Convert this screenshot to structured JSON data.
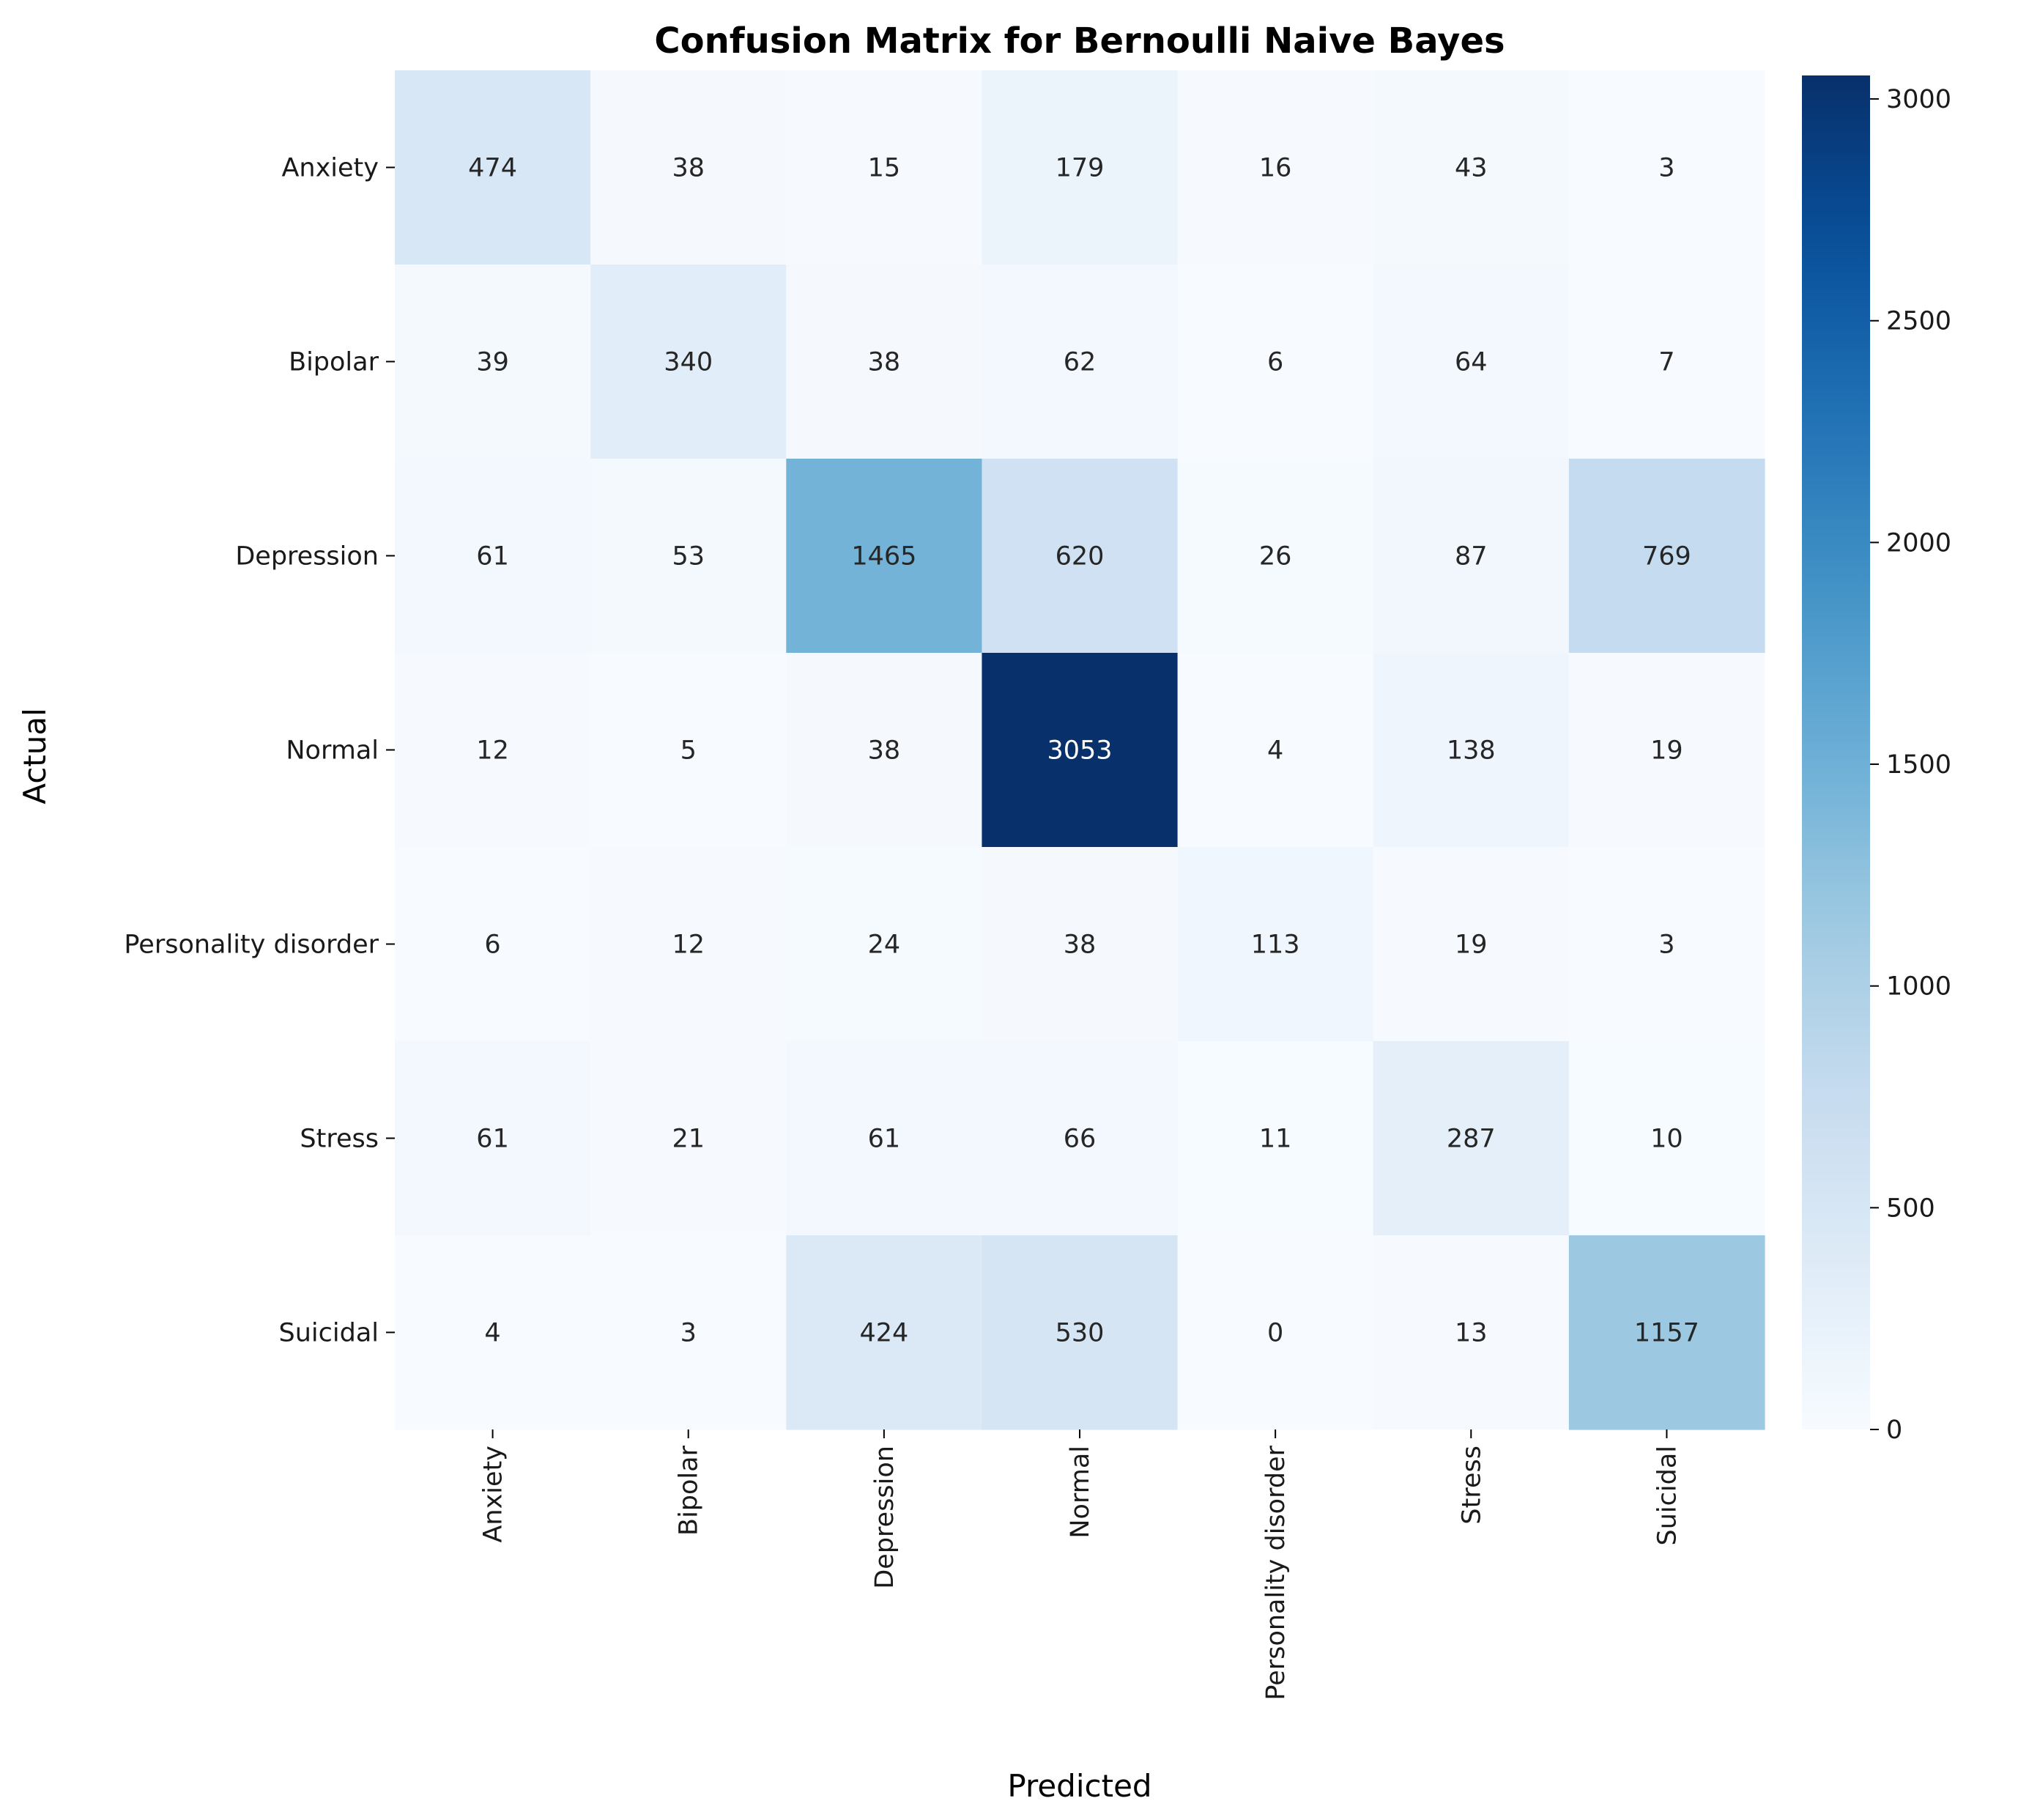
{
  "chart_data": {
    "type": "heatmap",
    "title": "Confusion Matrix for Bernoulli Naive Bayes",
    "xlabel": "Predicted",
    "ylabel": "Actual",
    "x_categories": [
      "Anxiety",
      "Bipolar",
      "Depression",
      "Normal",
      "Personality disorder",
      "Stress",
      "Suicidal"
    ],
    "y_categories": [
      "Anxiety",
      "Bipolar",
      "Depression",
      "Normal",
      "Personality disorder",
      "Stress",
      "Suicidal"
    ],
    "values": [
      [
        474,
        38,
        15,
        179,
        16,
        43,
        3
      ],
      [
        39,
        340,
        38,
        62,
        6,
        64,
        7
      ],
      [
        61,
        53,
        1465,
        620,
        26,
        87,
        769
      ],
      [
        12,
        5,
        38,
        3053,
        4,
        138,
        19
      ],
      [
        6,
        12,
        24,
        38,
        113,
        19,
        3
      ],
      [
        61,
        21,
        61,
        66,
        11,
        287,
        10
      ],
      [
        4,
        3,
        424,
        530,
        0,
        13,
        1157
      ]
    ],
    "colormap": "Blues",
    "colorbar": {
      "range": [
        0,
        3053
      ],
      "ticks": [
        0,
        500,
        1000,
        1500,
        2000,
        2500,
        3000
      ]
    }
  }
}
